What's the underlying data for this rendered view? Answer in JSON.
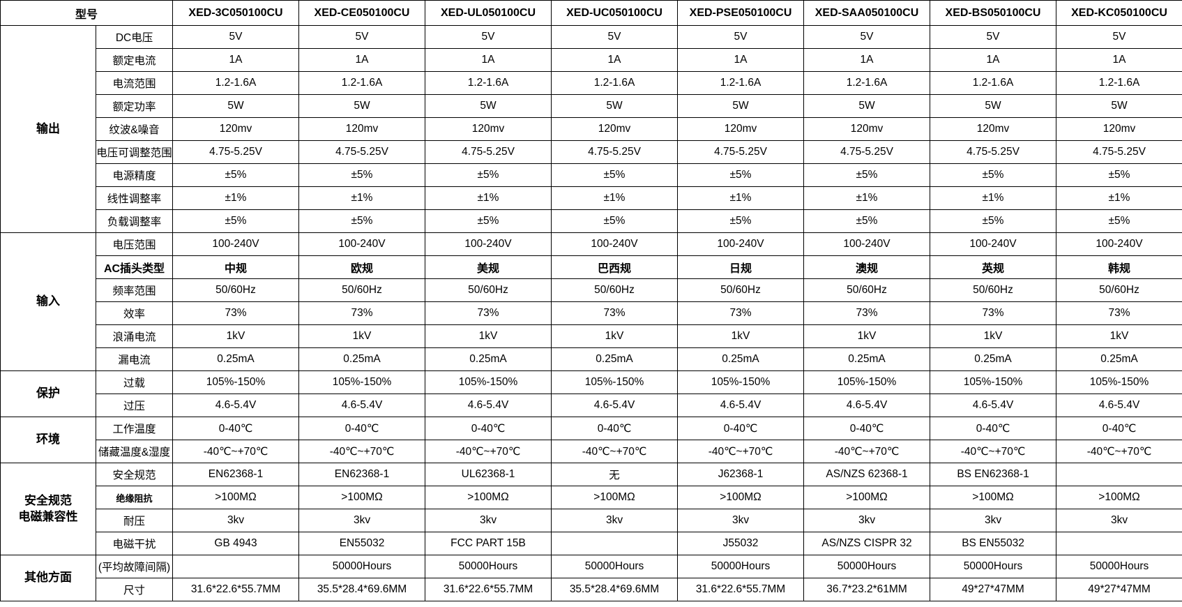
{
  "header": {
    "label": "型号",
    "models": [
      "XED-3C050100CU",
      "XED-CE050100CU",
      "XED-UL050100CU",
      "XED-UC050100CU",
      "XED-PSE050100CU",
      "XED-SAA050100CU",
      "XED-BS050100CU",
      "XED-KC050100CU"
    ]
  },
  "groups": [
    {
      "name": "输出",
      "rows": [
        {
          "label": "DC电压",
          "values": [
            "5V",
            "5V",
            "5V",
            "5V",
            "5V",
            "5V",
            "5V",
            "5V"
          ]
        },
        {
          "label": "额定电流",
          "values": [
            "1A",
            "1A",
            "1A",
            "1A",
            "1A",
            "1A",
            "1A",
            "1A"
          ]
        },
        {
          "label": "电流范围",
          "values": [
            "1.2-1.6A",
            "1.2-1.6A",
            "1.2-1.6A",
            "1.2-1.6A",
            "1.2-1.6A",
            "1.2-1.6A",
            "1.2-1.6A",
            "1.2-1.6A"
          ]
        },
        {
          "label": "额定功率",
          "values": [
            "5W",
            "5W",
            "5W",
            "5W",
            "5W",
            "5W",
            "5W",
            "5W"
          ]
        },
        {
          "label": "纹波&噪音",
          "values": [
            "120mv",
            "120mv",
            "120mv",
            "120mv",
            "120mv",
            "120mv",
            "120mv",
            "120mv"
          ]
        },
        {
          "label": "电压可调整范围",
          "values": [
            "4.75-5.25V",
            "4.75-5.25V",
            "4.75-5.25V",
            "4.75-5.25V",
            "4.75-5.25V",
            "4.75-5.25V",
            "4.75-5.25V",
            "4.75-5.25V"
          ]
        },
        {
          "label": "电源精度",
          "values": [
            "±5%",
            "±5%",
            "±5%",
            "±5%",
            "±5%",
            "±5%",
            "±5%",
            "±5%"
          ]
        },
        {
          "label": "线性调整率",
          "values": [
            "±1%",
            "±1%",
            "±1%",
            "±1%",
            "±1%",
            "±1%",
            "±1%",
            "±1%"
          ]
        },
        {
          "label": "负载调整率",
          "values": [
            "±5%",
            "±5%",
            "±5%",
            "±5%",
            "±5%",
            "±5%",
            "±5%",
            "±5%"
          ]
        }
      ]
    },
    {
      "name": "输入",
      "rows": [
        {
          "label": "电压范围",
          "values": [
            "100-240V",
            "100-240V",
            "100-240V",
            "100-240V",
            "100-240V",
            "100-240V",
            "100-240V",
            "100-240V"
          ]
        },
        {
          "label": "AC插头类型",
          "style": "bold",
          "values": [
            "中规",
            "欧规",
            "美规",
            "巴西规",
            "日规",
            "澳规",
            "英规",
            "韩规"
          ]
        },
        {
          "label": "频率范围",
          "values": [
            "50/60Hz",
            "50/60Hz",
            "50/60Hz",
            "50/60Hz",
            "50/60Hz",
            "50/60Hz",
            "50/60Hz",
            "50/60Hz"
          ]
        },
        {
          "label": "效率",
          "values": [
            "73%",
            "73%",
            "73%",
            "73%",
            "73%",
            "73%",
            "73%",
            "73%"
          ]
        },
        {
          "label": "浪涌电流",
          "values": [
            "1kV",
            "1kV",
            "1kV",
            "1kV",
            "1kV",
            "1kV",
            "1kV",
            "1kV"
          ]
        },
        {
          "label": "漏电流",
          "values": [
            "0.25mA",
            "0.25mA",
            "0.25mA",
            "0.25mA",
            "0.25mA",
            "0.25mA",
            "0.25mA",
            "0.25mA"
          ]
        }
      ]
    },
    {
      "name": "保护",
      "rows": [
        {
          "label": "过载",
          "values": [
            "105%-150%",
            "105%-150%",
            "105%-150%",
            "105%-150%",
            "105%-150%",
            "105%-150%",
            "105%-150%",
            "105%-150%"
          ]
        },
        {
          "label": "过压",
          "values": [
            "4.6-5.4V",
            "4.6-5.4V",
            "4.6-5.4V",
            "4.6-5.4V",
            "4.6-5.4V",
            "4.6-5.4V",
            "4.6-5.4V",
            "4.6-5.4V"
          ]
        }
      ]
    },
    {
      "name": "环境",
      "rows": [
        {
          "label": "工作温度",
          "values": [
            "0-40℃",
            "0-40℃",
            "0-40℃",
            "0-40℃",
            "0-40℃",
            "0-40℃",
            "0-40℃",
            "0-40℃"
          ]
        },
        {
          "label": "储藏温度&湿度",
          "values": [
            "-40℃~+70℃",
            "-40℃~+70℃",
            "-40℃~+70℃",
            "-40℃~+70℃",
            "-40℃~+70℃",
            "-40℃~+70℃",
            "-40℃~+70℃",
            "-40℃~+70℃"
          ]
        }
      ]
    },
    {
      "name": "安全规范\n电磁兼容性",
      "rows": [
        {
          "label": "安全规范",
          "values": [
            "EN62368-1",
            "EN62368-1",
            "UL62368-1",
            "无",
            "J62368-1",
            "AS/NZS 62368-1",
            "BS EN62368-1",
            ""
          ]
        },
        {
          "label": "绝缘阻抗",
          "label_style": "smallbold",
          "values": [
            ">100MΩ",
            ">100MΩ",
            ">100MΩ",
            ">100MΩ",
            ">100MΩ",
            ">100MΩ",
            ">100MΩ",
            ">100MΩ"
          ]
        },
        {
          "label": "耐压",
          "values": [
            "3kv",
            "3kv",
            "3kv",
            "3kv",
            "3kv",
            "3kv",
            "3kv",
            "3kv"
          ]
        },
        {
          "label": "电磁干扰",
          "values": [
            "GB 4943",
            "EN55032",
            "FCC PART 15B",
            "",
            "J55032",
            "AS/NZS CISPR 32",
            "BS EN55032",
            ""
          ]
        }
      ]
    },
    {
      "name": "其他方面",
      "rows": [
        {
          "label": "(平均故障间隔)",
          "values": [
            "",
            "50000Hours",
            "50000Hours",
            "50000Hours",
            "50000Hours",
            "50000Hours",
            "50000Hours",
            "50000Hours"
          ]
        },
        {
          "label": "尺寸",
          "values": [
            "31.6*22.6*55.7MM",
            "35.5*28.4*69.6MM",
            "31.6*22.6*55.7MM",
            "35.5*28.4*69.6MM",
            "31.6*22.6*55.7MM",
            "36.7*23.2*61MM",
            "49*27*47MM",
            "49*27*47MM"
          ]
        }
      ]
    }
  ]
}
